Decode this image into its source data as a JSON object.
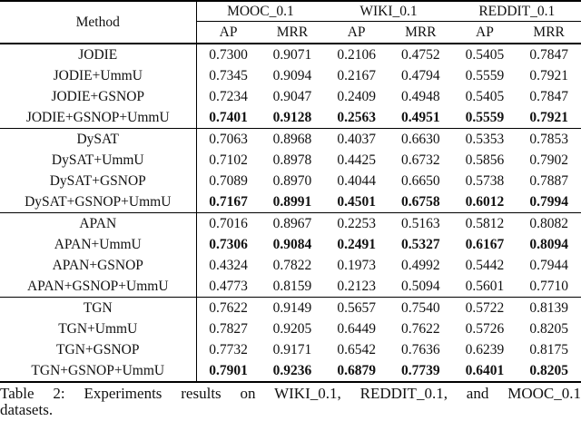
{
  "table": {
    "method_header": "Method",
    "group_headers": [
      "MOOC_0.1",
      "WIKI_0.1",
      "REDDIT_0.1"
    ],
    "subheaders": [
      "AP",
      "MRR",
      "AP",
      "MRR",
      "AP",
      "MRR"
    ],
    "row_groups": [
      {
        "rows": [
          {
            "method": "JODIE",
            "values": [
              "0.7300",
              "0.9071",
              "0.2106",
              "0.4752",
              "0.5405",
              "0.7847"
            ],
            "bold": false
          },
          {
            "method": "JODIE+UmmU",
            "values": [
              "0.7345",
              "0.9094",
              "0.2167",
              "0.4794",
              "0.5559",
              "0.7921"
            ],
            "bold": false
          },
          {
            "method": "JODIE+GSNOP",
            "values": [
              "0.7234",
              "0.9047",
              "0.2409",
              "0.4948",
              "0.5405",
              "0.7847"
            ],
            "bold": false
          },
          {
            "method": "JODIE+GSNOP+UmmU",
            "values": [
              "0.7401",
              "0.9128",
              "0.2563",
              "0.4951",
              "0.5559",
              "0.7921"
            ],
            "bold": true
          }
        ]
      },
      {
        "rows": [
          {
            "method": "DySAT",
            "values": [
              "0.7063",
              "0.8968",
              "0.4037",
              "0.6630",
              "0.5353",
              "0.7853"
            ],
            "bold": false
          },
          {
            "method": "DySAT+UmmU",
            "values": [
              "0.7102",
              "0.8978",
              "0.4425",
              "0.6732",
              "0.5856",
              "0.7902"
            ],
            "bold": false
          },
          {
            "method": "DySAT+GSNOP",
            "values": [
              "0.7089",
              "0.8970",
              "0.4044",
              "0.6650",
              "0.5738",
              "0.7887"
            ],
            "bold": false
          },
          {
            "method": "DySAT+GSNOP+UmmU",
            "values": [
              "0.7167",
              "0.8991",
              "0.4501",
              "0.6758",
              "0.6012",
              "0.7994"
            ],
            "bold": true
          }
        ]
      },
      {
        "rows": [
          {
            "method": "APAN",
            "values": [
              "0.7016",
              "0.8967",
              "0.2253",
              "0.5163",
              "0.5812",
              "0.8082"
            ],
            "bold": false
          },
          {
            "method": "APAN+UmmU",
            "values": [
              "0.7306",
              "0.9084",
              "0.2491",
              "0.5327",
              "0.6167",
              "0.8094"
            ],
            "bold": true
          },
          {
            "method": "APAN+GSNOP",
            "values": [
              "0.4324",
              "0.7822",
              "0.1973",
              "0.4992",
              "0.5442",
              "0.7944"
            ],
            "bold": false
          },
          {
            "method": "APAN+GSNOP+UmmU",
            "values": [
              "0.4773",
              "0.8159",
              "0.2123",
              "0.5094",
              "0.5601",
              "0.7710"
            ],
            "bold": false
          }
        ]
      },
      {
        "rows": [
          {
            "method": "TGN",
            "values": [
              "0.7622",
              "0.9149",
              "0.5657",
              "0.7540",
              "0.5722",
              "0.8139"
            ],
            "bold": false
          },
          {
            "method": "TGN+UmmU",
            "values": [
              "0.7827",
              "0.9205",
              "0.6449",
              "0.7622",
              "0.5726",
              "0.8205"
            ],
            "bold": false
          },
          {
            "method": "TGN+GSNOP",
            "values": [
              "0.7732",
              "0.9171",
              "0.6542",
              "0.7636",
              "0.6239",
              "0.8175"
            ],
            "bold": false
          },
          {
            "method": "TGN+GSNOP+UmmU",
            "values": [
              "0.7901",
              "0.9236",
              "0.6879",
              "0.7739",
              "0.6401",
              "0.8205"
            ],
            "bold": true
          }
        ]
      }
    ]
  },
  "caption": {
    "line1": "Table 2: Experiments results on WIKI_0.1, REDDIT_0.1, and MOOC_0.1",
    "line2": "datasets."
  }
}
